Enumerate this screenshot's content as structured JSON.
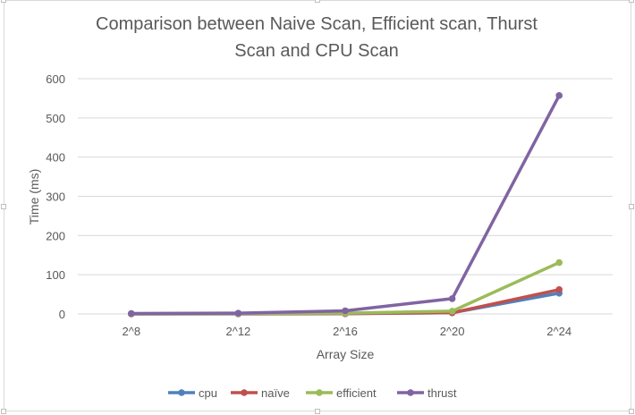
{
  "chart_data": {
    "type": "line",
    "title": "Comparison between Naive Scan, Efficient scan, Thurst Scan and CPU Scan",
    "title_lines": [
      "Comparison between Naive Scan, Efficient scan, Thurst",
      "Scan and CPU Scan"
    ],
    "xlabel": "Array Size",
    "ylabel": "Time (ms)",
    "categories": [
      "2^8",
      "2^12",
      "2^16",
      "2^20",
      "2^24"
    ],
    "ylim": [
      0,
      600
    ],
    "yticks": [
      "0",
      "100",
      "200",
      "300",
      "400",
      "500",
      "600"
    ],
    "grid": true,
    "legend_position": "bottom",
    "series": [
      {
        "name": "cpu",
        "color": "#4f81bd",
        "values": [
          0,
          0,
          0.5,
          3,
          53
        ]
      },
      {
        "name": "naïve",
        "color": "#c0504d",
        "values": [
          0,
          0.5,
          1,
          3,
          62
        ]
      },
      {
        "name": "efficient",
        "color": "#9bbb59",
        "values": [
          0.5,
          1,
          2,
          7,
          131
        ]
      },
      {
        "name": "thrust",
        "color": "#8064a2",
        "values": [
          1,
          2,
          8,
          39,
          557
        ]
      }
    ]
  }
}
